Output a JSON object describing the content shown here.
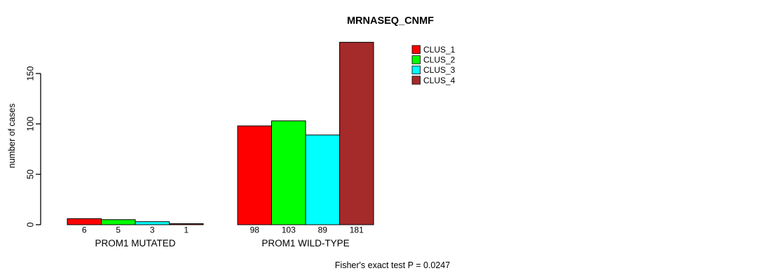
{
  "figure": {
    "background": "#ffffff"
  },
  "chart_data": {
    "type": "bar",
    "title": "MRNASEQ_CNMF",
    "ylabel": "number of cases",
    "xlabel": "",
    "annotation": "Fisher's exact test P = 0.0247",
    "groups": [
      "PROM1 MUTATED",
      "PROM1 WILD-TYPE"
    ],
    "series": [
      {
        "name": "CLUS_1",
        "color": "#ff0000",
        "values": [
          6,
          98
        ]
      },
      {
        "name": "CLUS_2",
        "color": "#00ff00",
        "values": [
          5,
          103
        ]
      },
      {
        "name": "CLUS_3",
        "color": "#00ffff",
        "values": [
          3,
          89
        ]
      },
      {
        "name": "CLUS_4",
        "color": "#a52a2a",
        "values": [
          1,
          181
        ]
      }
    ],
    "yticks": [
      0,
      50,
      100,
      150
    ],
    "ylim": [
      0,
      150
    ],
    "bar_border_color": "#000000",
    "axis_color": "#000000",
    "legend_position": "top-right",
    "grid": false
  }
}
